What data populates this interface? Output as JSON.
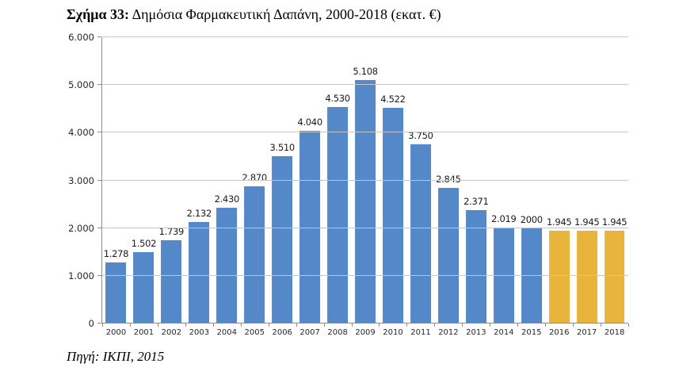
{
  "title": {
    "prefix": "Σχήμα 33:",
    "rest": " Δημόσια Φαρμακευτική Δαπάνη, 2000-2018 (εκατ. €)"
  },
  "source": "Πηγή: ΙΚΠΙ, 2015",
  "chart_data": {
    "type": "bar",
    "title": "Σχήμα 33: Δημόσια Φαρμακευτική Δαπάνη, 2000-2018 (εκατ. €)",
    "xlabel": "",
    "ylabel": "",
    "categories": [
      "2000",
      "2001",
      "2002",
      "2003",
      "2004",
      "2005",
      "2006",
      "2007",
      "2008",
      "2009",
      "2010",
      "2011",
      "2012",
      "2013",
      "2014",
      "2015",
      "2016",
      "2017",
      "2018"
    ],
    "values": [
      1278,
      1502,
      1739,
      2132,
      2430,
      2870,
      3510,
      4040,
      4530,
      5108,
      4522,
      3750,
      2845,
      2371,
      2019,
      2000,
      1945,
      1945,
      1945
    ],
    "data_labels": [
      "1.278",
      "1.502",
      "1.739",
      "2.132",
      "2.430",
      "2.870",
      "3.510",
      "4.040",
      "4.530",
      "5.108",
      "4.522",
      "3.750",
      "2.845",
      "2.371",
      "2.019",
      "2000",
      "1.945",
      "1.945",
      "1.945"
    ],
    "bar_colors": [
      "#5588C8",
      "#5588C8",
      "#5588C8",
      "#5588C8",
      "#5588C8",
      "#5588C8",
      "#5588C8",
      "#5588C8",
      "#5588C8",
      "#5588C8",
      "#5588C8",
      "#5588C8",
      "#5588C8",
      "#5588C8",
      "#5588C8",
      "#5588C8",
      "#E8B43C",
      "#E8B43C",
      "#E8B43C"
    ],
    "colors": {
      "default_bar": "#5588C8",
      "highlight_bar": "#E8B43C",
      "gridline": "#c6c6c6",
      "axis": "#8c8c8c"
    },
    "ylim": [
      0,
      6000
    ],
    "yticks": [
      0,
      1000,
      2000,
      3000,
      4000,
      5000,
      6000
    ],
    "ytick_labels": [
      "0",
      "1.000",
      "2.000",
      "3.000",
      "4.000",
      "5.000",
      "6.000"
    ],
    "grid": true,
    "legend": "none"
  }
}
